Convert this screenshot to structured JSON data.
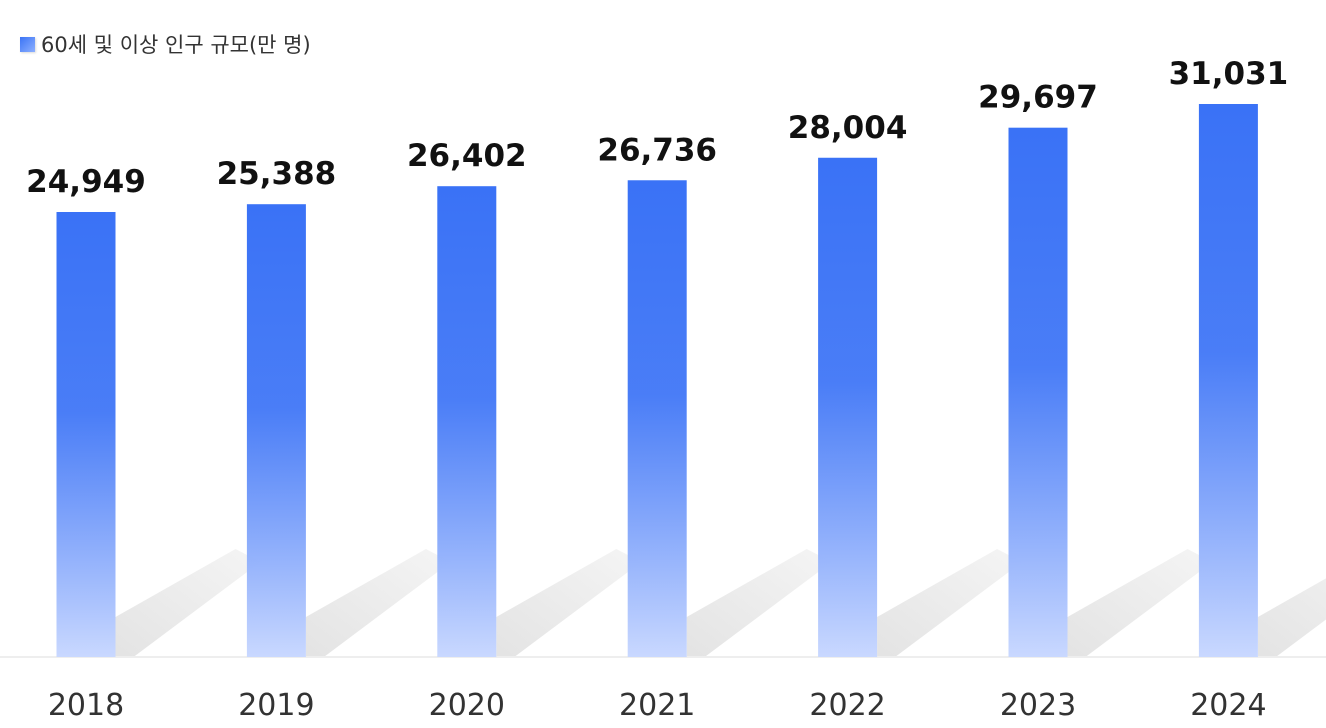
{
  "legend": {
    "label": "60세 및 이상 인구 규모(만 명)"
  },
  "colors": {
    "bar_top": "#3a72f6",
    "bar_bottom": "#c9d8ff",
    "shadow": "#d9d9d9",
    "baseline": "#eeeeee"
  },
  "chart_data": {
    "type": "bar",
    "categories": [
      "2018",
      "2019",
      "2020",
      "2021",
      "2022",
      "2023",
      "2024"
    ],
    "series": [
      {
        "name": "60세 및 이상 인구 규모(만 명)",
        "values": [
          24949,
          25388,
          26402,
          26736,
          28004,
          29697,
          31031
        ]
      }
    ],
    "value_labels": [
      "24,949",
      "25,388",
      "26,402",
      "26,736",
      "28,004",
      "29,697",
      "31,031"
    ],
    "title": "",
    "xlabel": "",
    "ylabel": "",
    "grid": false,
    "legend_position": "top-left"
  }
}
